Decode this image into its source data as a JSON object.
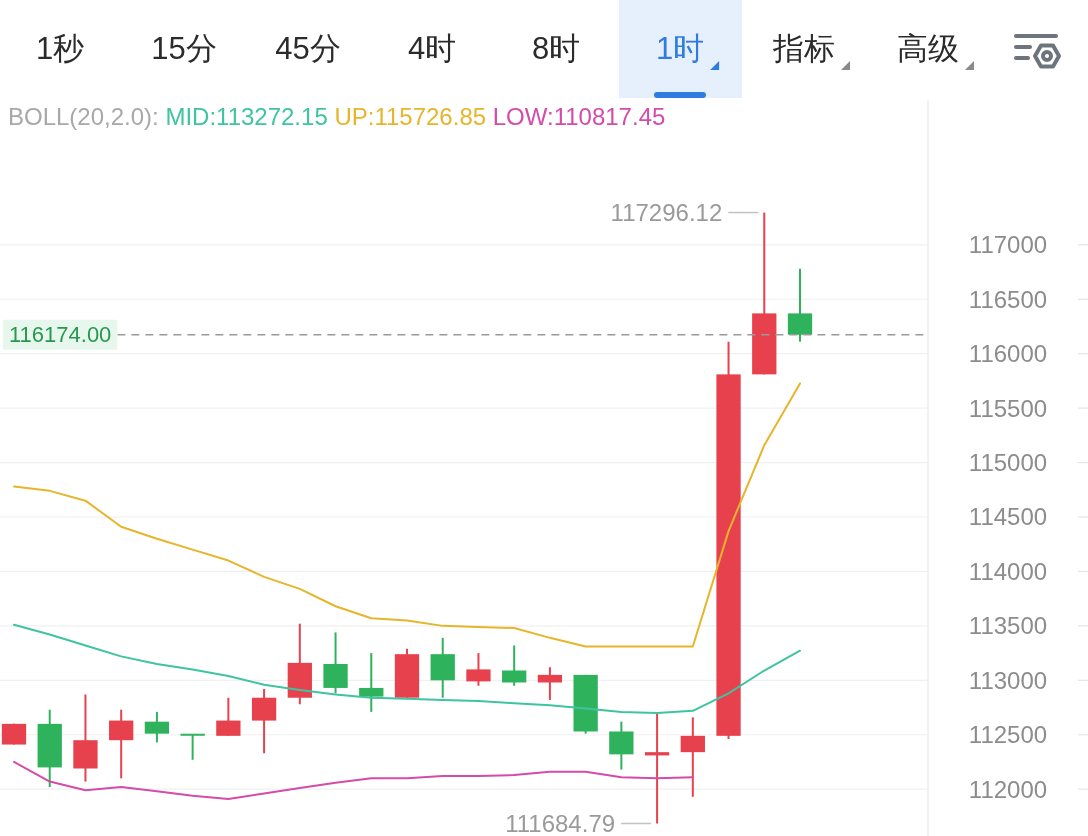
{
  "chart_data": [
    {
      "type": "other",
      "annotations": [
        "1秒",
        "15分",
        "45分",
        "4时",
        "8时",
        "1时",
        "指标",
        "高级"
      ]
    },
    {
      "type": "candlestick",
      "legend_title": "BOLL(20,2.0):",
      "legend": "top left",
      "categories": [
        null,
        null,
        null,
        null,
        null,
        null,
        null,
        null,
        null,
        null,
        null,
        null,
        null,
        null,
        null,
        null,
        null,
        null,
        null,
        null,
        null,
        null,
        null
      ],
      "ohlc": [
        [
          112410,
          112600,
          112410,
          112600
        ],
        [
          112600,
          112730,
          112020,
          112200
        ],
        [
          112190,
          112870,
          112070,
          112450
        ],
        [
          112450,
          112730,
          112100,
          112630
        ],
        [
          112620,
          112710,
          112430,
          112510
        ],
        [
          112500,
          112500,
          112270,
          112500
        ],
        [
          112490,
          112840,
          112490,
          112630
        ],
        [
          112630,
          112920,
          112330,
          112840
        ],
        [
          112840,
          113520,
          112780,
          113160
        ],
        [
          113150,
          113440,
          112880,
          112930
        ],
        [
          112930,
          113250,
          112710,
          112850
        ],
        [
          112840,
          113290,
          112840,
          113240
        ],
        [
          113240,
          113390,
          112840,
          113000
        ],
        [
          112990,
          113250,
          112950,
          113100
        ],
        [
          113090,
          113320,
          112950,
          112980
        ],
        [
          112980,
          113120,
          112820,
          113050
        ],
        [
          113050,
          113050,
          112510,
          112530
        ],
        [
          112530,
          112620,
          112180,
          112320
        ],
        [
          112310,
          112700,
          111684.79,
          112340
        ],
        [
          112340,
          112660,
          111930,
          112490
        ],
        [
          112490,
          116110,
          112460,
          115810
        ],
        [
          115810,
          117296.12,
          115810,
          116370
        ],
        [
          116370,
          116780,
          116110,
          116174
        ]
      ],
      "colors": [
        "#e8414e",
        "#2eb25c",
        "#e8414e",
        "#e8414e",
        "#2eb25c",
        "#2eb25c",
        "#e8414e",
        "#e8414e",
        "#e8414e",
        "#2eb25c",
        "#2eb25c",
        "#e8414e",
        "#2eb25c",
        "#e8414e",
        "#2eb25c",
        "#e8414e",
        "#2eb25c",
        "#2eb25c",
        "#e8414e",
        "#e8414e",
        "#e8414e",
        "#e8414e",
        "#2eb25c"
      ],
      "series": [
        {
          "name": "MID:113272.15",
          "type": "line",
          "color": "#3ec4a0",
          "values": [
            113510,
            113420,
            113320,
            113220,
            113150,
            113100,
            113040,
            112960,
            112910,
            112870,
            112840,
            112830,
            112820,
            112810,
            112790,
            112770,
            112740,
            112710,
            112700,
            112720,
            112880,
            113090,
            113272.15
          ]
        },
        {
          "name": "UP:115726.85",
          "type": "line",
          "color": "#e6b52a",
          "values": [
            114780,
            114740,
            114650,
            114410,
            114300,
            114200,
            114100,
            113950,
            113840,
            113680,
            113570,
            113550,
            113500,
            113490,
            113480,
            113390,
            113310,
            113310,
            113310,
            113310,
            114370,
            115160,
            115726.85
          ]
        },
        {
          "name": "LOW:110817.45",
          "type": "line",
          "color": "#d44ba9",
          "values": [
            112250,
            112070,
            111990,
            112020,
            111980,
            111940,
            111910,
            111960,
            112010,
            112060,
            112100,
            112100,
            112120,
            112120,
            112130,
            112160,
            112160,
            112110,
            112100,
            112110,
            null,
            null,
            null
          ]
        }
      ],
      "ylim": [
        111570,
        118330
      ],
      "yticks": [
        112000,
        112500,
        113000,
        113500,
        114000,
        114500,
        115000,
        115500,
        116000,
        116500,
        117000
      ],
      "grid": "y",
      "tick_labels": "y",
      "ref_lines": [
        {
          "axis": "y",
          "value": 116174,
          "label": "116174.00",
          "color": "#9a9a9a",
          "line_style": "dashed"
        }
      ],
      "annotations": [
        "117296.12",
        "111684.79"
      ]
    }
  ]
}
